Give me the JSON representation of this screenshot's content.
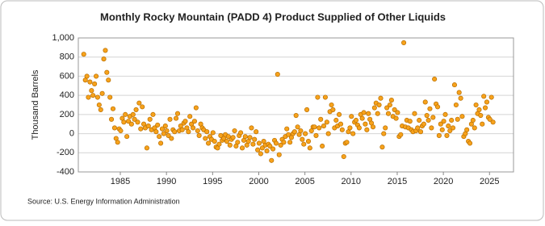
{
  "chart_data": {
    "type": "scatter",
    "title": "Monthly Rocky Mountain (PADD 4) Product Supplied of Other Liquids",
    "y_label": "Thousand Barrels",
    "source": "Source: U.S. Energy Information Administration",
    "color": "#f7a21b",
    "stroke": "#b86e00",
    "grid": true,
    "xlim": [
      1980.45,
      2027.6
    ],
    "ylim": [
      -400,
      1000
    ],
    "xticks": [
      1985,
      1990,
      1995,
      2000,
      2005,
      2010,
      2015,
      2020,
      2025
    ],
    "yticks": [
      -400,
      -200,
      0,
      200,
      400,
      600,
      800,
      {
        "value": 1000,
        "label": "1,000"
      }
    ],
    "x": [
      1981.04,
      1981.21,
      1981.38,
      1981.54,
      1981.71,
      1981.88,
      1982.04,
      1982.21,
      1982.38,
      1982.54,
      1982.71,
      1982.88,
      1983.04,
      1983.21,
      1983.38,
      1983.54,
      1983.71,
      1983.88,
      1984.04,
      1984.21,
      1984.38,
      1984.54,
      1984.71,
      1984.88,
      1985.04,
      1985.21,
      1985.38,
      1985.54,
      1985.71,
      1985.88,
      1986.04,
      1986.21,
      1986.38,
      1986.54,
      1986.71,
      1986.88,
      1987.04,
      1987.21,
      1987.38,
      1987.54,
      1987.71,
      1987.88,
      1988.04,
      1988.21,
      1988.38,
      1988.54,
      1988.71,
      1988.88,
      1989.04,
      1989.21,
      1989.38,
      1989.54,
      1989.71,
      1989.88,
      1990.04,
      1990.21,
      1990.38,
      1990.54,
      1990.71,
      1990.88,
      1991.04,
      1991.21,
      1991.38,
      1991.54,
      1991.71,
      1991.88,
      1992.04,
      1992.21,
      1992.38,
      1992.54,
      1992.71,
      1992.88,
      1993.04,
      1993.21,
      1993.38,
      1993.54,
      1993.71,
      1993.88,
      1994.04,
      1994.21,
      1994.38,
      1994.54,
      1994.71,
      1994.88,
      1995.04,
      1995.21,
      1995.38,
      1995.54,
      1995.71,
      1995.88,
      1996.04,
      1996.21,
      1996.38,
      1996.54,
      1996.71,
      1996.88,
      1997.04,
      1997.21,
      1997.38,
      1997.54,
      1997.71,
      1997.88,
      1998.04,
      1998.21,
      1998.38,
      1998.54,
      1998.71,
      1998.88,
      1999.04,
      1999.21,
      1999.38,
      1999.54,
      1999.71,
      1999.88,
      2000.04,
      2000.21,
      2000.38,
      2000.54,
      2000.71,
      2000.88,
      2001.04,
      2001.21,
      2001.38,
      2001.54,
      2001.71,
      2001.88,
      2002.04,
      2002.21,
      2002.38,
      2002.54,
      2002.71,
      2002.88,
      2003.04,
      2003.21,
      2003.38,
      2003.54,
      2003.71,
      2003.88,
      2004.04,
      2004.21,
      2004.38,
      2004.54,
      2004.71,
      2004.88,
      2005.04,
      2005.21,
      2005.38,
      2005.54,
      2005.71,
      2005.88,
      2006.04,
      2006.21,
      2006.38,
      2006.54,
      2006.71,
      2006.88,
      2007.04,
      2007.21,
      2007.38,
      2007.54,
      2007.71,
      2007.88,
      2008.04,
      2008.21,
      2008.38,
      2008.54,
      2008.71,
      2008.88,
      2009.04,
      2009.21,
      2009.38,
      2009.54,
      2009.71,
      2009.88,
      2010.04,
      2010.21,
      2010.38,
      2010.54,
      2010.71,
      2010.88,
      2011.04,
      2011.21,
      2011.38,
      2011.54,
      2011.71,
      2011.88,
      2012.04,
      2012.21,
      2012.38,
      2012.54,
      2012.71,
      2012.88,
      2013.04,
      2013.21,
      2013.38,
      2013.54,
      2013.71,
      2013.88,
      2014.04,
      2014.21,
      2014.38,
      2014.54,
      2014.71,
      2014.88,
      2015.04,
      2015.21,
      2015.38,
      2015.54,
      2015.71,
      2015.88,
      2016.04,
      2016.21,
      2016.38,
      2016.54,
      2016.71,
      2016.88,
      2017.04,
      2017.21,
      2017.38,
      2017.54,
      2017.71,
      2017.88,
      2018.04,
      2018.21,
      2018.38,
      2018.54,
      2018.71,
      2018.88,
      2019.04,
      2019.21,
      2019.38,
      2019.54,
      2019.71,
      2019.88,
      2020.04,
      2020.21,
      2020.38,
      2020.54,
      2020.71,
      2020.88,
      2021.04,
      2021.21,
      2021.38,
      2021.54,
      2021.71,
      2021.88,
      2022.04,
      2022.21,
      2022.38,
      2022.54,
      2022.71,
      2022.88,
      2023.04,
      2023.21,
      2023.38,
      2023.54,
      2023.71,
      2023.88,
      2024.04,
      2024.21,
      2024.38,
      2024.54,
      2024.71,
      2024.88,
      2025.04,
      2025.21,
      2025.38
    ],
    "values": [
      830,
      560,
      600,
      380,
      540,
      450,
      400,
      520,
      600,
      380,
      300,
      250,
      420,
      780,
      870,
      640,
      560,
      380,
      150,
      260,
      60,
      -50,
      -90,
      50,
      30,
      160,
      120,
      200,
      -30,
      130,
      180,
      100,
      200,
      150,
      250,
      120,
      320,
      50,
      280,
      100,
      60,
      -150,
      80,
      150,
      40,
      200,
      60,
      20,
      90,
      -30,
      -100,
      50,
      0,
      80,
      30,
      -20,
      150,
      -50,
      40,
      20,
      160,
      210,
      30,
      80,
      40,
      110,
      130,
      60,
      20,
      180,
      100,
      60,
      130,
      270,
      30,
      -20,
      100,
      60,
      40,
      -50,
      20,
      -100,
      -30,
      -60,
      10,
      -80,
      -140,
      -150,
      -110,
      -20,
      -70,
      -50,
      -10,
      -80,
      -30,
      -120,
      -60,
      -40,
      30,
      -130,
      -90,
      -20,
      10,
      -150,
      -70,
      -30,
      -120,
      -80,
      -40,
      60,
      -110,
      -60,
      20,
      -170,
      -100,
      -210,
      -150,
      -80,
      -120,
      -180,
      -110,
      -130,
      -280,
      -160,
      -70,
      -100,
      620,
      -220,
      -120,
      -60,
      -90,
      -30,
      50,
      -10,
      -90,
      -40,
      0,
      20,
      190,
      70,
      -10,
      30,
      -60,
      -110,
      0,
      250,
      -80,
      -150,
      30,
      70,
      70,
      -20,
      380,
      60,
      150,
      -130,
      80,
      380,
      120,
      0,
      230,
      300,
      250,
      60,
      140,
      80,
      200,
      100,
      40,
      -240,
      -100,
      -90,
      20,
      60,
      180,
      0,
      120,
      140,
      90,
      60,
      200,
      160,
      220,
      100,
      40,
      210,
      150,
      110,
      70,
      270,
      320,
      210,
      300,
      370,
      -140,
      0,
      60,
      270,
      210,
      300,
      350,
      180,
      250,
      160,
      220,
      -30,
      -10,
      80,
      950,
      70,
      140,
      60,
      130,
      40,
      20,
      210,
      30,
      60,
      140,
      20,
      80,
      100,
      330,
      190,
      140,
      260,
      60,
      170,
      570,
      310,
      280,
      -20,
      100,
      40,
      130,
      200,
      -20,
      80,
      30,
      140,
      60,
      510,
      300,
      150,
      430,
      370,
      180,
      -30,
      0,
      40,
      -80,
      -100,
      100,
      140,
      60,
      300,
      210,
      250,
      190,
      100,
      390,
      270,
      330,
      170,
      150,
      380,
      120
    ]
  }
}
